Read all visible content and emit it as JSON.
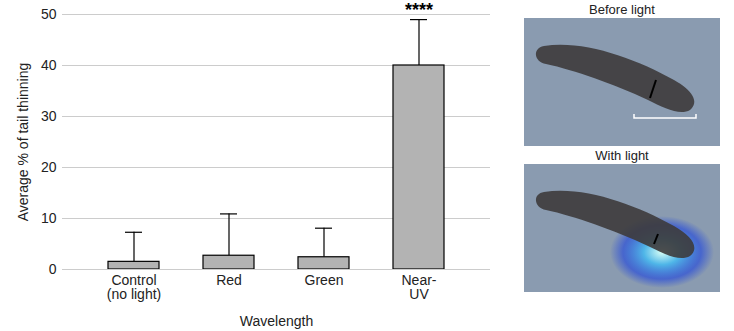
{
  "chart_data": {
    "type": "bar",
    "categories": [
      "Control\n(no light)",
      "Red",
      "Green",
      "Near-\nUV"
    ],
    "values": [
      1.5,
      2.7,
      2.4,
      40
    ],
    "errors": [
      5.8,
      8.2,
      5.7,
      9
    ],
    "color": "#b3b3b3",
    "x_label": "Wavelength",
    "y_label": "Average % of tail thinning",
    "ylim": [
      0,
      50
    ],
    "yticks": [
      0,
      10,
      20,
      30,
      40,
      50
    ],
    "grid": true,
    "annotations": [
      {
        "category": "Near-\nUV",
        "text": "****"
      }
    ],
    "image_titles": [
      "Before light",
      "With light"
    ]
  }
}
